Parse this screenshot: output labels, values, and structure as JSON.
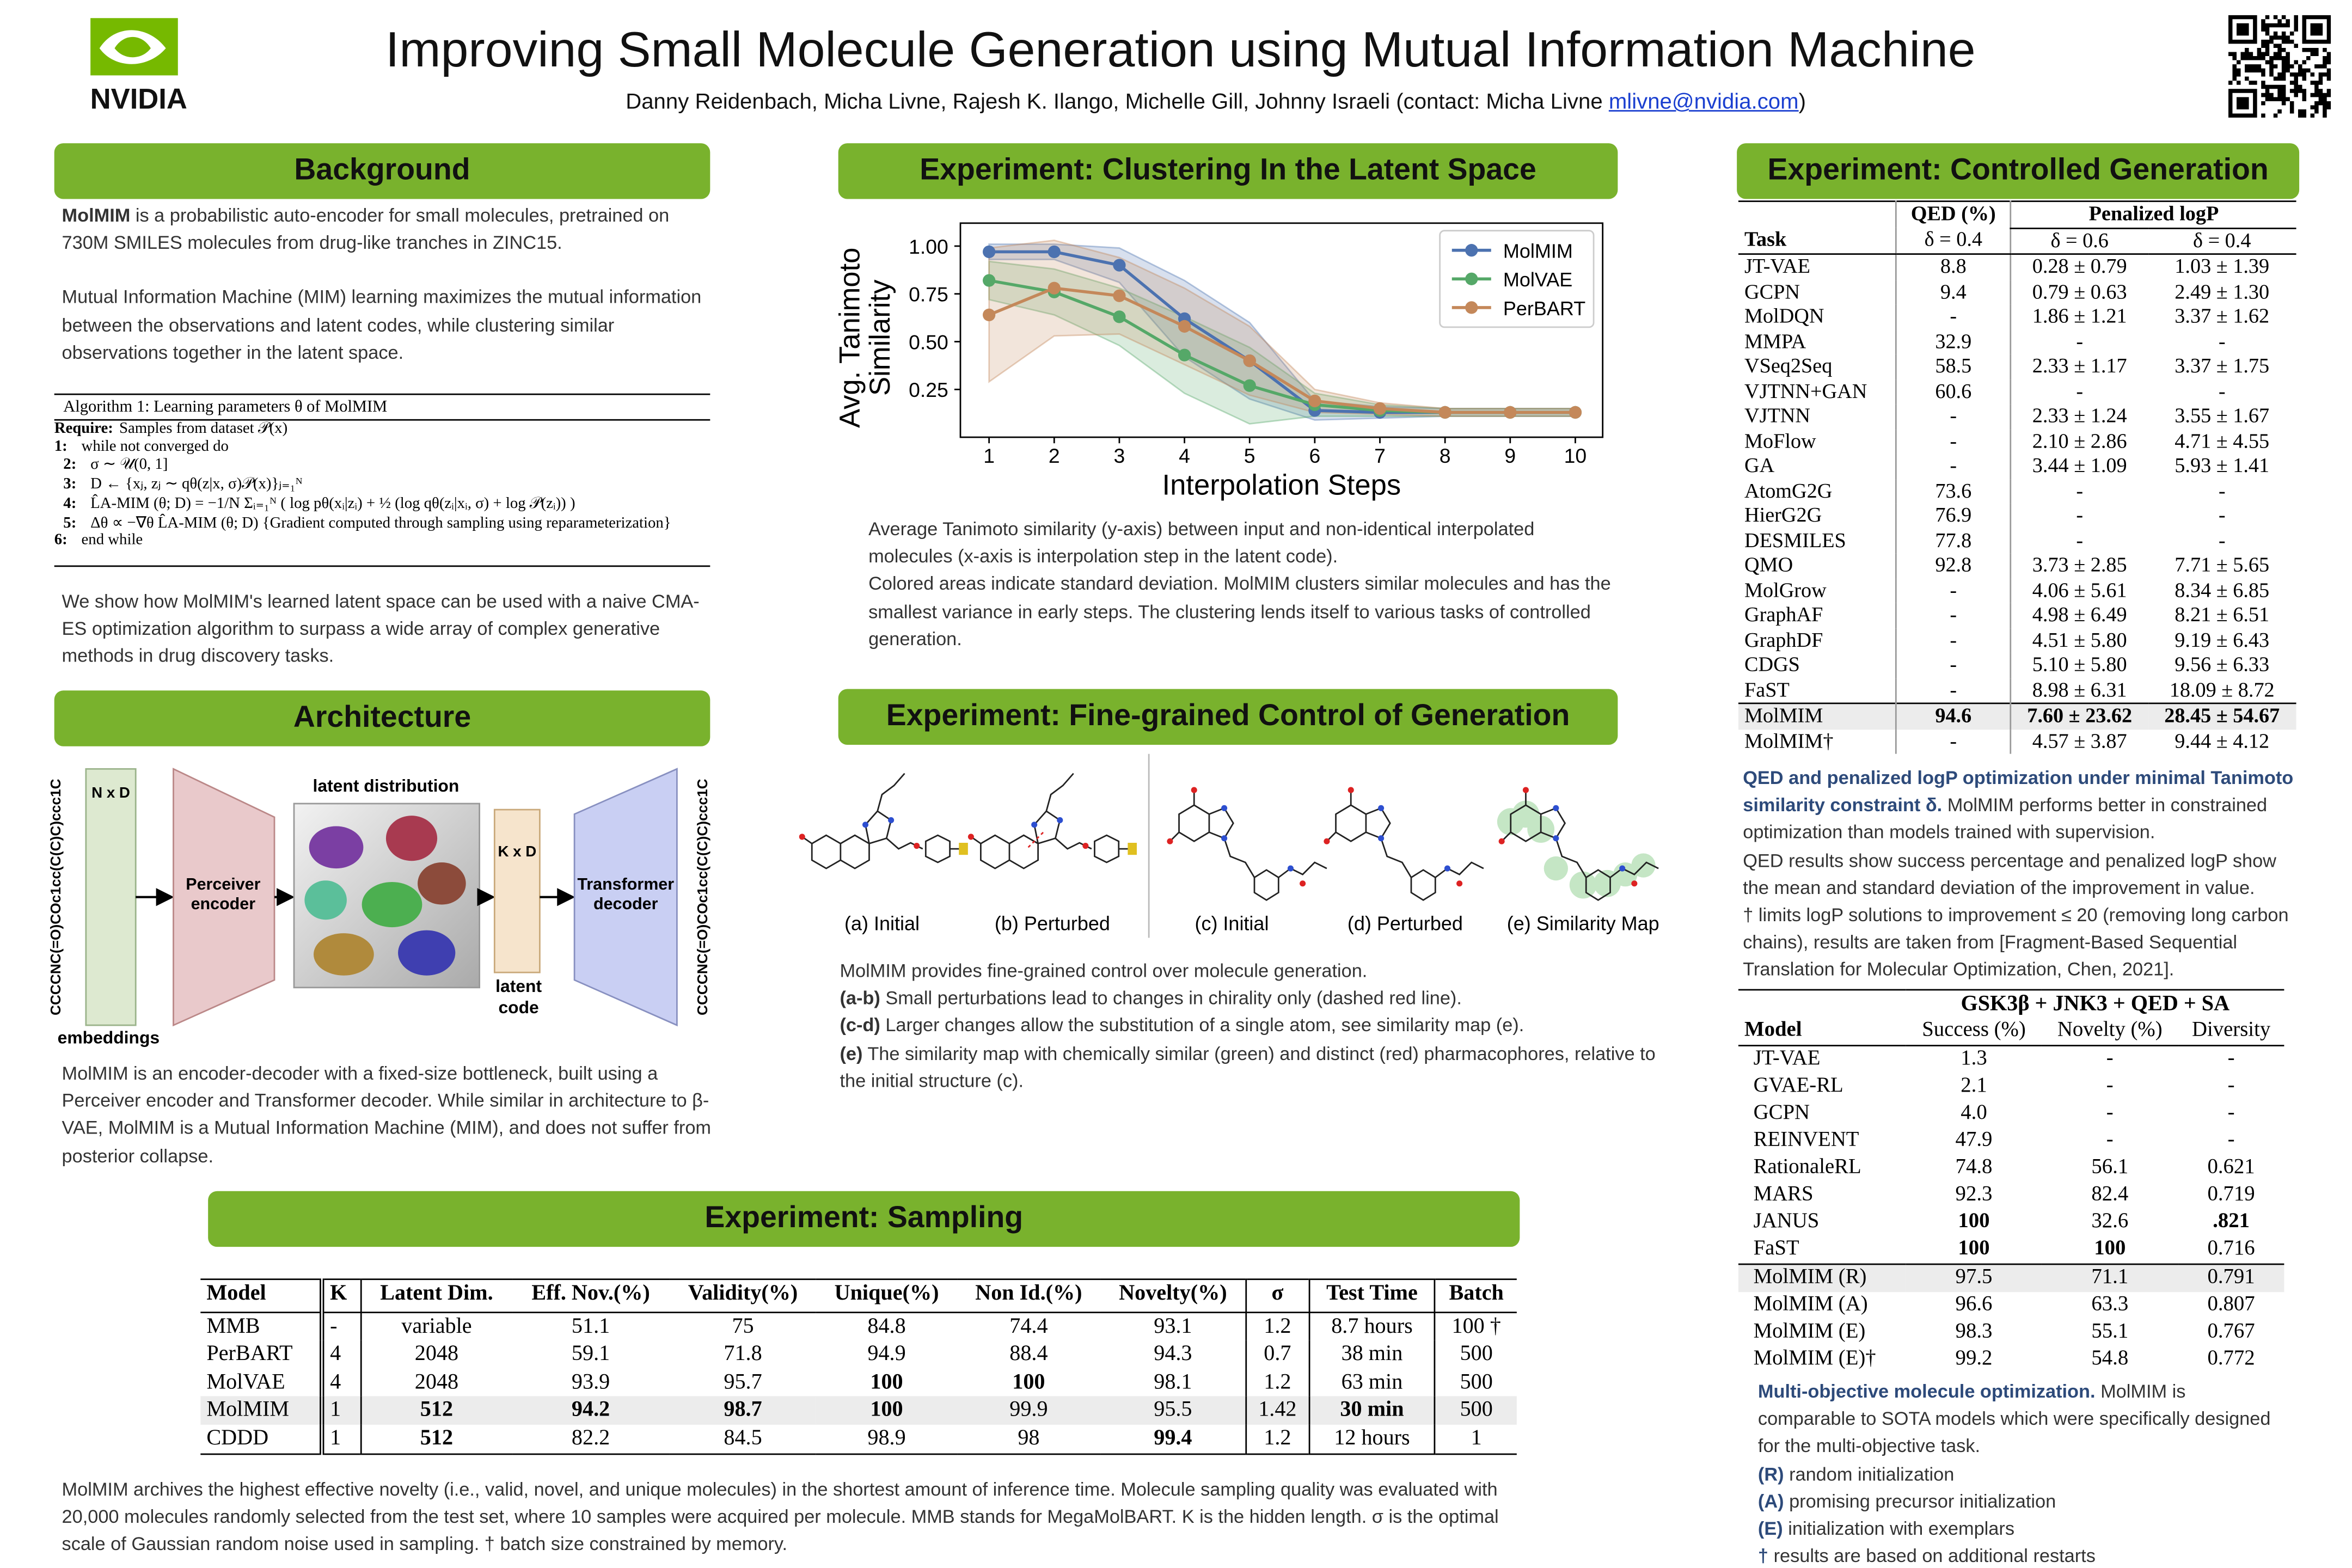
{
  "header": {
    "logo_text": "NVIDIA",
    "title": "Improving Small Molecule Generation using Mutual Information Machine",
    "authors": "Danny Reidenbach, Micha Livne, Rajesh K. Ilango, Michelle Gill, Johnny Israeli (contact: Micha Livne",
    "email": "mlivne@nvidia.com",
    "authors_end": ")"
  },
  "background": {
    "heading": "Background",
    "paragraphs": [
      {
        "lead": "MolMIM",
        "text": " is a probabilistic auto-encoder for small molecules, pretrained on 730M SMILES molecules from drug-like tranches in ZINC15."
      },
      "Mutual Information Machine (MIM) learning maximizes the mutual information between the observations and latent codes, while clustering similar observations together in the latent space."
    ],
    "algorithm": {
      "title": "Algorithm 1: Learning parameters θ of MolMIM",
      "lines": [
        {
          "n": "Require:",
          "text": "Samples from dataset 𝒫(x)"
        },
        {
          "n": "1:",
          "text": "while not converged do"
        },
        {
          "n": "2:",
          "text": "σ ∼ 𝒰(0, 1]"
        },
        {
          "n": "3:",
          "text": "D ← {xⱼ, zⱼ ∼ qθ(z|x, σ)𝒫(x)}ⱼ₌₁ᴺ"
        },
        {
          "n": "4:",
          "text": "L̂A-MIM (θ; D) = −1/N Σᵢ₌₁ᴺ ( log pθ(xᵢ|zᵢ) + ½ (log qθ(zᵢ|xᵢ, σ) + log 𝒫(zᵢ)) )"
        },
        {
          "n": "5:",
          "text": "Δθ ∝ −∇θ L̂A-MIM (θ; D) {Gradient computed through sampling using reparameterization}"
        },
        {
          "n": "6:",
          "text": "end while"
        }
      ]
    },
    "closing": "We show how MolMIM's learned latent space can be used with a naive CMA-ES optimization algorithm to surpass a wide array of complex generative methods in drug discovery tasks."
  },
  "architecture": {
    "heading": "Architecture",
    "input": "CCCCNC(=O)COc1cc(C(C)C)ccc1C",
    "embedding_shape": "N x D",
    "embeddings": "embeddings",
    "encoder": [
      "Perceiver",
      "encoder"
    ],
    "latent_distribution": "latent distribution",
    "latent_shape": "K x D",
    "latent_code": [
      "latent",
      "code"
    ],
    "decoder": [
      "Transformer",
      "decoder"
    ],
    "output": "CCCCNC(=O)COc1cc(C(C)C)ccc1C",
    "caption": "MolMIM is an encoder-decoder with a fixed-size bottleneck, built using a Perceiver encoder and Transformer decoder. While similar in architecture to β-VAE, MolMIM is a Mutual Information Machine (MIM), and does not suffer from posterior collapse."
  },
  "clustering": {
    "heading": "Experiment: Clustering In the Latent Space",
    "chart": {
      "type": "line",
      "xlabel": "Interpolation Steps",
      "ylabel": [
        "Avg. Tanimoto",
        "Similarity"
      ],
      "x": [
        1,
        2,
        3,
        4,
        5,
        6,
        7,
        8,
        9,
        10
      ],
      "xlim": [
        0.56,
        10.42
      ],
      "xticks": [
        1,
        2,
        3,
        4,
        5,
        6,
        7,
        8,
        9,
        10
      ],
      "ylim": [
        0,
        1.12
      ],
      "yticks": [
        {
          "value": 1,
          "label": "1.00"
        },
        0.75,
        {
          "value": 0.5,
          "label": "0.50"
        },
        0.25
      ],
      "legend": "upper right",
      "series": [
        {
          "name": "MolMIM",
          "color": "#4c72b0",
          "values": [
            0.97,
            0.97,
            0.9,
            0.62,
            0.4,
            0.14,
            0.13,
            0.13,
            0.13,
            0.13
          ],
          "std": [
            0.04,
            0.04,
            0.09,
            0.2,
            0.2,
            0.05,
            0.03,
            0.02,
            0.02,
            0.02
          ]
        },
        {
          "name": "MolVAE",
          "color": "#55a868",
          "values": [
            0.82,
            0.76,
            0.63,
            0.43,
            0.27,
            0.17,
            0.14,
            0.13,
            0.13,
            0.13
          ],
          "std": [
            0.1,
            0.12,
            0.15,
            0.2,
            0.2,
            0.06,
            0.03,
            0.02,
            0.02,
            0.02
          ]
        },
        {
          "name": "PerBART",
          "color": "#c4885a",
          "values": [
            0.64,
            0.78,
            0.74,
            0.58,
            0.4,
            0.19,
            0.15,
            0.13,
            0.13,
            0.13
          ],
          "std": [
            0.35,
            0.25,
            0.2,
            0.2,
            0.18,
            0.06,
            0.03,
            0.02,
            0.02,
            0.02
          ]
        }
      ]
    },
    "caption": [
      "Average Tanimoto similarity (y-axis) between input and non-identical interpolated molecules (x-axis is interpolation step in the latent code).",
      "Colored areas indicate standard deviation. MolMIM clusters similar molecules and has the smallest variance in early steps. The clustering lends itself to various tasks of controlled generation."
    ]
  },
  "fine_grained": {
    "heading": "Experiment: Fine-grained Control of Generation",
    "image_captions": [
      "(a) Initial",
      "(b) Perturbed",
      "(c) Initial",
      "(d) Perturbed",
      "(e) Similarity Map"
    ],
    "caption": [
      "MolMIM provides fine-grained control over molecule generation.",
      {
        "lead": "(a-b)",
        "text": " Small perturbations lead to changes in chirality only (dashed red line)."
      },
      {
        "lead": "(c-d)",
        "text": " Larger changes allow the substitution of a single atom, see similarity map (e)."
      },
      {
        "lead": "(e)",
        "text": " The similarity map with chemically similar (green) and distinct (red) pharmacophores, relative to the initial structure (c)."
      }
    ]
  },
  "sampling": {
    "heading": "Experiment: Sampling",
    "table": {
      "columns": [
        "Model",
        "K",
        "Latent Dim.",
        "Eff. Nov.(%)",
        "Validity(%)",
        "Unique(%)",
        "Non Id.(%)",
        "Novelty(%)",
        "σ",
        "Test Time",
        "Batch"
      ],
      "rows": [
        [
          "MMB",
          "-",
          "variable",
          "51.1",
          "75",
          "84.8",
          "74.4",
          "93.1",
          "1.2",
          "8.7 hours",
          "100 †"
        ],
        [
          "PerBART",
          "4",
          "2048",
          "59.1",
          "71.8",
          "94.9",
          "88.4",
          "94.3",
          "0.7",
          "38 min",
          "500"
        ],
        [
          "MolVAE",
          "4",
          "2048",
          "93.9",
          "95.7",
          "100",
          "100",
          "98.1",
          "1.2",
          "63 min",
          "500"
        ],
        [
          "MolMIM",
          "1",
          "512",
          "94.2",
          "98.7",
          "100",
          "99.9",
          "95.5",
          "1.42",
          "30 min",
          "500"
        ],
        [
          "CDDD",
          "1",
          "512",
          "82.2",
          "84.5",
          "98.9",
          "98",
          "99.4",
          "1.2",
          "12 hours",
          "1"
        ]
      ],
      "bold": [
        [
          2,
          5
        ],
        [
          2,
          6
        ],
        [
          3,
          2
        ],
        [
          3,
          3
        ],
        [
          3,
          4
        ],
        [
          3,
          5
        ],
        [
          3,
          9
        ],
        [
          4,
          2
        ],
        [
          4,
          7
        ]
      ],
      "highlight_row": 3
    },
    "caption": "MolMIM archives the highest effective novelty (i.e., valid, novel, and unique molecules) in the shortest amount of inference time. Molecule sampling quality was evaluated with 20,000 molecules randomly selected from the test set, where 10 samples were acquired per molecule. MMB stands for MegaMolBART. K is the hidden length. σ is the optimal scale of Gaussian random noise used in sampling. † batch size constrained by memory."
  },
  "controlled": {
    "heading": "Experiment: Controlled Generation",
    "table": {
      "group_headers": [
        "QED (%)",
        "Penalized logP"
      ],
      "columns": [
        "Task",
        "δ = 0.4",
        "δ = 0.6",
        "δ = 0.4"
      ],
      "rows": [
        [
          "JT-VAE",
          "8.8",
          "0.28 ± 0.79",
          "1.03 ± 1.39"
        ],
        [
          "GCPN",
          "9.4",
          "0.79 ± 0.63",
          "2.49 ± 1.30"
        ],
        [
          "MolDQN",
          "-",
          "1.86 ± 1.21",
          "3.37 ± 1.62"
        ],
        [
          "MMPA",
          "32.9",
          "-",
          "-"
        ],
        [
          "VSeq2Seq",
          "58.5",
          "2.33 ± 1.17",
          "3.37 ± 1.75"
        ],
        [
          "VJTNN+GAN",
          "60.6",
          "-",
          "-"
        ],
        [
          "VJTNN",
          "-",
          "2.33 ± 1.24",
          "3.55 ± 1.67"
        ],
        [
          "MoFlow",
          "-",
          "2.10 ± 2.86",
          "4.71 ± 4.55"
        ],
        [
          "GA",
          "-",
          "3.44 ± 1.09",
          "5.93 ± 1.41"
        ],
        [
          "AtomG2G",
          "73.6",
          "-",
          "-"
        ],
        [
          "HierG2G",
          "76.9",
          "-",
          "-"
        ],
        [
          "DESMILES",
          "77.8",
          "-",
          "-"
        ],
        [
          "QMO",
          "92.8",
          "3.73 ± 2.85",
          "7.71 ± 5.65"
        ],
        [
          "MolGrow",
          "-",
          "4.06 ± 5.61",
          "8.34 ± 6.85"
        ],
        [
          "GraphAF",
          "-",
          "4.98 ± 6.49",
          "8.21 ± 6.51"
        ],
        [
          "GraphDF",
          "-",
          "4.51 ± 5.80",
          "9.19 ± 6.43"
        ],
        [
          "CDGS",
          "-",
          "5.10 ± 5.80",
          "9.56 ± 6.33"
        ],
        [
          "FaST",
          "-",
          "8.98 ± 6.31",
          "18.09 ± 8.72"
        ],
        [
          "MolMIM",
          "94.6",
          "7.60 ± 23.62",
          "28.45 ± 54.67"
        ],
        [
          "MolMIM†",
          "-",
          "4.57 ± 3.87",
          "9.44 ± 4.12"
        ]
      ],
      "bold": [
        [
          18,
          1
        ],
        [
          18,
          2
        ],
        [
          18,
          3
        ]
      ],
      "highlight_row": 18
    },
    "caption": [
      {
        "lead": "QED and penalized logP optimization under minimal Tanimoto similarity constraint δ.",
        "text": " MolMIM performs better in constrained optimization than models trained with supervision."
      },
      "QED results show success percentage and penalized logP show the mean and standard deviation of the improvement in value.",
      "† limits logP solutions to improvement ≤ 20 (removing long carbon chains), results are taken from [Fragment-Based Sequential Translation for Molecular Optimization, Chen, 2021]."
    ],
    "table2": {
      "group_header": "GSK3β + JNK3 + QED + SA",
      "columns": [
        "Model",
        "Success (%)",
        "Novelty (%)",
        "Diversity"
      ],
      "rows": [
        [
          "JT-VAE",
          "1.3",
          "-",
          "-"
        ],
        [
          "GVAE-RL",
          "2.1",
          "-",
          "-"
        ],
        [
          "GCPN",
          "4.0",
          "-",
          "-"
        ],
        [
          "REINVENT",
          "47.9",
          "-",
          "-"
        ],
        [
          "RationaleRL",
          "74.8",
          "56.1",
          "0.621"
        ],
        [
          "MARS",
          "92.3",
          "82.4",
          "0.719"
        ],
        [
          "JANUS",
          "100",
          "32.6",
          ".821"
        ],
        [
          "FaST",
          "100",
          "100",
          "0.716"
        ],
        [
          "MolMIM (R)",
          "97.5",
          "71.1",
          "0.791"
        ],
        [
          "MolMIM (A)",
          "96.6",
          "63.3",
          "0.807"
        ],
        [
          "MolMIM (E)",
          "98.3",
          "55.1",
          "0.767"
        ],
        [
          "MolMIM (E)†",
          "99.2",
          "54.8",
          "0.772"
        ]
      ],
      "bold": [
        [
          6,
          1
        ],
        [
          6,
          3
        ],
        [
          7,
          1
        ],
        [
          7,
          2
        ]
      ],
      "highlight_row": 8
    },
    "caption2": [
      {
        "lead": "Multi-objective molecule optimization.",
        "text": " MolMIM is comparable to SOTA models which were specifically designed for the multi-objective task."
      },
      {
        "lead": "(R)",
        "text": " random initialization"
      },
      {
        "lead": "(A)",
        "text": " promising precursor initialization"
      },
      {
        "lead": "(E)",
        "text": " initialization with exemplars"
      },
      {
        "lead": "†",
        "text": " results are based on additional restarts"
      }
    ]
  }
}
